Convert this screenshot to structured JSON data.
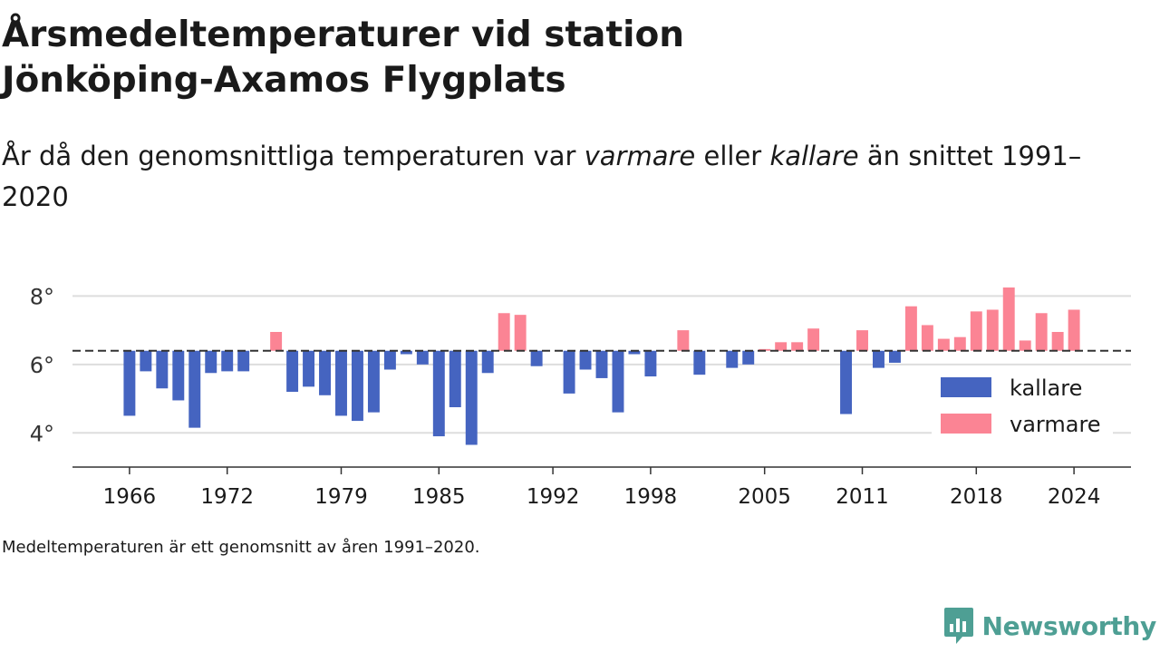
{
  "header": {
    "title_line1": "Årsmedeltemperaturer vid station",
    "title_line2": "Jönköping-Axamos Flygplats",
    "subtitle_part1": "År då den genomsnittliga temperaturen var ",
    "subtitle_em1": "varmare",
    "subtitle_part2": " eller ",
    "subtitle_em2": "kallare",
    "subtitle_part3": " än snittet 1991–2020"
  },
  "footer": {
    "note": "Medeltemperaturen är ett genomsnitt av åren 1991–2020.",
    "brand": "Newsworthy"
  },
  "colors": {
    "colder": "#4564c0",
    "warmer": "#fb8494",
    "grid": "#dddddd",
    "axis": "#333333",
    "brand": "#4e9f94"
  },
  "chart_data": {
    "type": "bar",
    "baseline": 6.4,
    "ylim": [
      3.0,
      8.7
    ],
    "yticks": [
      4,
      6,
      8
    ],
    "ytick_labels": [
      "4°",
      "6°",
      "8°"
    ],
    "xticks": [
      1966,
      1972,
      1979,
      1985,
      1992,
      1998,
      2005,
      2011,
      2018,
      2024
    ],
    "xtick_labels": [
      "1966",
      "1972",
      "1979",
      "1985",
      "1992",
      "1998",
      "2005",
      "2011",
      "2018",
      "2024"
    ],
    "xlim": [
      1962.5,
      2027.5
    ],
    "legend": {
      "position": "right",
      "colder_label": "kallare",
      "warmer_label": "varmare"
    },
    "grid": true,
    "series": [
      {
        "year": 1966,
        "value": 4.5
      },
      {
        "year": 1967,
        "value": 5.8
      },
      {
        "year": 1968,
        "value": 5.3
      },
      {
        "year": 1969,
        "value": 4.95
      },
      {
        "year": 1970,
        "value": 4.15
      },
      {
        "year": 1971,
        "value": 5.75
      },
      {
        "year": 1972,
        "value": 5.8
      },
      {
        "year": 1973,
        "value": 5.8
      },
      {
        "year": 1975,
        "value": 6.95
      },
      {
        "year": 1976,
        "value": 5.2
      },
      {
        "year": 1977,
        "value": 5.35
      },
      {
        "year": 1978,
        "value": 5.1
      },
      {
        "year": 1979,
        "value": 4.5
      },
      {
        "year": 1980,
        "value": 4.35
      },
      {
        "year": 1981,
        "value": 4.6
      },
      {
        "year": 1982,
        "value": 5.85
      },
      {
        "year": 1983,
        "value": 6.3
      },
      {
        "year": 1984,
        "value": 6.0
      },
      {
        "year": 1985,
        "value": 3.9
      },
      {
        "year": 1986,
        "value": 4.75
      },
      {
        "year": 1987,
        "value": 3.65
      },
      {
        "year": 1988,
        "value": 5.75
      },
      {
        "year": 1989,
        "value": 7.5
      },
      {
        "year": 1990,
        "value": 7.45
      },
      {
        "year": 1991,
        "value": 5.95
      },
      {
        "year": 1993,
        "value": 5.15
      },
      {
        "year": 1994,
        "value": 5.85
      },
      {
        "year": 1995,
        "value": 5.6
      },
      {
        "year": 1996,
        "value": 4.6
      },
      {
        "year": 1997,
        "value": 6.3
      },
      {
        "year": 1998,
        "value": 5.65
      },
      {
        "year": 2000,
        "value": 7.0
      },
      {
        "year": 2001,
        "value": 5.7
      },
      {
        "year": 2003,
        "value": 5.9
      },
      {
        "year": 2004,
        "value": 6.0
      },
      {
        "year": 2005,
        "value": 6.45
      },
      {
        "year": 2006,
        "value": 6.65
      },
      {
        "year": 2007,
        "value": 6.65
      },
      {
        "year": 2008,
        "value": 7.05
      },
      {
        "year": 2010,
        "value": 4.55
      },
      {
        "year": 2011,
        "value": 7.0
      },
      {
        "year": 2012,
        "value": 5.9
      },
      {
        "year": 2013,
        "value": 6.05
      },
      {
        "year": 2014,
        "value": 7.7
      },
      {
        "year": 2015,
        "value": 7.15
      },
      {
        "year": 2016,
        "value": 6.75
      },
      {
        "year": 2017,
        "value": 6.8
      },
      {
        "year": 2018,
        "value": 7.55
      },
      {
        "year": 2019,
        "value": 7.6
      },
      {
        "year": 2020,
        "value": 8.25
      },
      {
        "year": 2021,
        "value": 6.7
      },
      {
        "year": 2022,
        "value": 7.5
      },
      {
        "year": 2023,
        "value": 6.95
      },
      {
        "year": 2024,
        "value": 7.6
      }
    ]
  }
}
